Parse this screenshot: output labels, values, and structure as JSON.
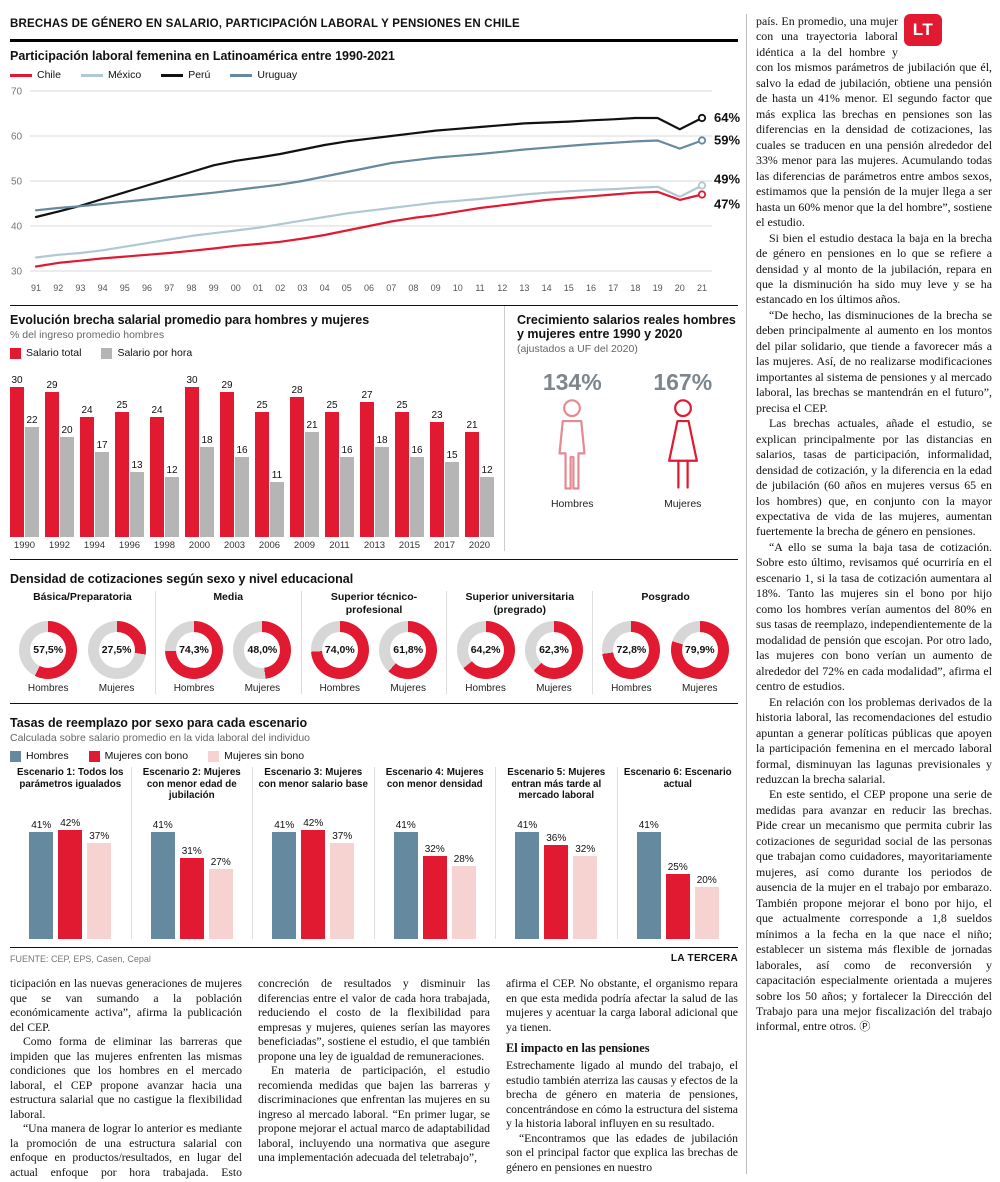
{
  "accent": {
    "red": "#e11931",
    "steel": "#65899f",
    "light_blue": "#b0c8d2",
    "black": "#111111",
    "gray_bar": "#b5b5b5",
    "pink": "#f6d3d1",
    "donut_gray": "#d7d7d7",
    "man_red": "#e58a92"
  },
  "header": {
    "title": "BRECHAS DE GÉNERO EN SALARIO, PARTICIPACIÓN LABORAL Y PENSIONES EN CHILE",
    "logo": "LT"
  },
  "footer": {
    "source": "FUENTE: CEP, EPS, Casen, Cepal",
    "brand": "LA TERCERA"
  },
  "chart_data": [
    {
      "type": "line",
      "title": "Participación laboral femenina en Latinoamérica entre 1990-2021",
      "ylim": [
        30,
        70
      ],
      "yticks": [
        30,
        40,
        50,
        60,
        70
      ],
      "x": [
        "91",
        "92",
        "93",
        "94",
        "95",
        "96",
        "97",
        "98",
        "99",
        "00",
        "01",
        "02",
        "03",
        "04",
        "05",
        "06",
        "07",
        "08",
        "09",
        "10",
        "11",
        "12",
        "13",
        "14",
        "15",
        "16",
        "17",
        "18",
        "19",
        "20",
        "21"
      ],
      "series": [
        {
          "name": "Chile",
          "color_key": "red",
          "end_label": "47%",
          "end_dy": 10,
          "values": [
            31,
            31.8,
            32.3,
            32.8,
            33.2,
            33.6,
            34,
            34.5,
            35,
            35.6,
            36,
            36.5,
            37.2,
            38,
            39,
            40,
            41,
            41.8,
            42.4,
            43.2,
            44,
            44.6,
            45.2,
            45.8,
            46.2,
            46.6,
            47,
            47.4,
            47.6,
            45.8,
            47
          ]
        },
        {
          "name": "México",
          "color_key": "light_blue",
          "end_label": "49%",
          "end_dy": -6,
          "values": [
            33,
            33.6,
            34,
            34.6,
            35.4,
            36.2,
            37,
            37.8,
            38.4,
            39,
            39.6,
            40.4,
            41.2,
            42,
            42.8,
            43.4,
            44,
            44.6,
            45.2,
            45.6,
            46,
            46.5,
            47,
            47.4,
            47.7,
            48,
            48.2,
            48.5,
            48.7,
            46.5,
            49
          ]
        },
        {
          "name": "Perú",
          "color_key": "black",
          "end_label": "64%",
          "end_dy": 0,
          "values": [
            42,
            43.2,
            44.5,
            46,
            47.5,
            49,
            50.5,
            52,
            53.5,
            54.5,
            55.2,
            56,
            57,
            58,
            58.8,
            59.4,
            60,
            60.6,
            61.2,
            61.6,
            62,
            62.4,
            62.8,
            63,
            63.2,
            63.5,
            63.7,
            64,
            64,
            61.5,
            64
          ]
        },
        {
          "name": "Uruguay",
          "color_key": "steel",
          "end_label": "59%",
          "end_dy": 0,
          "values": [
            43.5,
            44,
            44.4,
            44.9,
            45.4,
            45.9,
            46.4,
            46.9,
            47.4,
            48,
            48.6,
            49.2,
            50,
            51,
            52,
            53,
            54,
            54.6,
            55.2,
            55.6,
            56,
            56.5,
            57,
            57.4,
            57.8,
            58.2,
            58.5,
            58.8,
            59,
            57.2,
            59
          ]
        }
      ]
    },
    {
      "type": "bar",
      "title": "Evolución brecha salarial promedio para hombres y mujeres",
      "subtitle": "% del ingreso promedio hombres",
      "categories": [
        "1990",
        "1992",
        "1994",
        "1996",
        "1998",
        "2000",
        "2003",
        "2006",
        "2009",
        "2011",
        "2013",
        "2015",
        "2017",
        "2020"
      ],
      "series": [
        {
          "name": "Salario total",
          "color_key": "red",
          "values": [
            30,
            29,
            24,
            25,
            24,
            30,
            29,
            25,
            28,
            25,
            27,
            25,
            23,
            21
          ]
        },
        {
          "name": "Salario por hora",
          "color_key": "gray_bar",
          "values": [
            22,
            20,
            17,
            13,
            12,
            18,
            16,
            11,
            21,
            16,
            18,
            16,
            15,
            12
          ]
        }
      ],
      "ylim": [
        0,
        32
      ]
    },
    {
      "type": "pictogram",
      "title": "Crecimiento salarios reales hombres y mujeres entre 1990 y 2020",
      "subtitle": "(ajustados a UF del 2020)",
      "items": [
        {
          "label": "Hombres",
          "value": "134%"
        },
        {
          "label": "Mujeres",
          "value": "167%"
        }
      ]
    },
    {
      "type": "donut-grid",
      "title": "Densidad de cotizaciones según sexo y nivel educacional",
      "hombres_label": "Hombres",
      "mujeres_label": "Mujeres",
      "groups": [
        {
          "label": "Básica/Preparatoria",
          "hombres": 57.5,
          "mujeres": 27.5,
          "hombres_text": "57,5%",
          "mujeres_text": "27,5%"
        },
        {
          "label": "Media",
          "hombres": 74.3,
          "mujeres": 48.0,
          "hombres_text": "74,3%",
          "mujeres_text": "48,0%"
        },
        {
          "label": "Superior técnico-profesional",
          "hombres": 74.0,
          "mujeres": 61.8,
          "hombres_text": "74,0%",
          "mujeres_text": "61,8%"
        },
        {
          "label": "Superior universitaria (pregrado)",
          "hombres": 64.2,
          "mujeres": 62.3,
          "hombres_text": "64,2%",
          "mujeres_text": "62,3%"
        },
        {
          "label": "Posgrado",
          "hombres": 72.8,
          "mujeres": 79.9,
          "hombres_text": "72,8%",
          "mujeres_text": "79,9%"
        }
      ]
    },
    {
      "type": "bar-groups",
      "title": "Tasas de reemplazo por sexo para cada escenario",
      "subtitle": "Calculada sobre salario promedio en la vida laboral del individuo",
      "series_legend": [
        {
          "name": "Hombres",
          "color_key": "steel"
        },
        {
          "name": "Mujeres con bono",
          "color_key": "red"
        },
        {
          "name": "Mujeres sin bono",
          "color_key": "pink"
        }
      ],
      "scenarios": [
        {
          "label": "Escenario 1: Todos los parámetros igualados",
          "values": [
            41,
            42,
            37
          ]
        },
        {
          "label": "Escenario 2: Mujeres con menor edad de jubilación",
          "values": [
            41,
            31,
            27
          ]
        },
        {
          "label": "Escenario 3: Mujeres con menor salario base",
          "values": [
            41,
            42,
            37
          ]
        },
        {
          "label": "Escenario 4: Mujeres con menor densidad",
          "values": [
            41,
            32,
            28
          ]
        },
        {
          "label": "Escenario 5: Mujeres entran más tarde al mercado laboral",
          "values": [
            41,
            36,
            32
          ]
        },
        {
          "label": "Escenario 6: Escenario actual",
          "values": [
            41,
            25,
            20
          ]
        }
      ]
    }
  ],
  "bottom_columns": [
    {
      "blocks": [
        {
          "type": "p",
          "indent": false,
          "text": "ticipación en las nuevas generaciones de mujeres que se van sumando a la población económicamente activa”, afirma la publicación del CEP."
        },
        {
          "type": "p",
          "indent": true,
          "text": "Como forma de eliminar las barreras que impiden que las mujeres enfrenten las mismas condiciones que los hombres en el mercado laboral, el CEP propone avanzar hacia una estructura salarial que no castigue la flexibilidad laboral."
        },
        {
          "type": "p",
          "indent": true,
          "text": "“Una manera de lograr lo anterior es mediante la promoción de una estructura salarial con enfoque en productos/resultados, en lugar del actual enfoque por hora trabajada. Esto permitiría premiar la"
        }
      ]
    },
    {
      "blocks": [
        {
          "type": "p",
          "indent": false,
          "text": "concreción de resultados y disminuir las diferencias entre el valor de cada hora trabajada, reduciendo el costo de la flexibilidad para empresas y mujeres, quienes serían las mayores beneficiadas”, sostiene el estudio, el que también propone una ley de igualdad de remuneraciones."
        },
        {
          "type": "p",
          "indent": true,
          "text": "En materia de participación, el estudio recomienda medidas que bajen las barreras y discriminaciones que enfrentan las mujeres en su ingreso al mercado laboral. “En primer lugar, se propone mejorar el actual marco de adaptabilidad laboral, incluyendo una normativa que asegure una implementación adecuada del teletrabajo”,"
        }
      ]
    },
    {
      "blocks": [
        {
          "type": "p",
          "indent": false,
          "text": "afirma el CEP. No obstante, el organismo repara en que esta medida podría afectar la salud de las mujeres y acentuar la carga laboral adicional que ya tienen."
        },
        {
          "type": "h",
          "text": "El impacto en las pensiones"
        },
        {
          "type": "p",
          "indent": false,
          "text": "Estrechamente ligado al mundo del trabajo, el estudio también aterriza las causas y efectos de la brecha de género en materia de pensiones, concentrándose en cómo la estructura del sistema y la historia laboral influyen en su resultado."
        },
        {
          "type": "p",
          "indent": true,
          "text": "“Encontramos que las edades de jubilación son el principal factor que explica las brechas de género en pensiones en nuestro"
        }
      ]
    }
  ],
  "right_column": {
    "end_mark": "Ⓟ",
    "paragraphs": [
      "país. En promedio, una mujer con una trayectoria laboral idéntica a la del hombre y con los mismos parámetros de jubilación que él, salvo la edad de jubilación, obtiene una pensión de hasta un 41% menor. El segundo factor que más explica las brechas en pensiones son las diferencias en la densidad de cotizaciones, las cuales se traducen en una pensión alrededor del 33% menor para las mujeres. Acumulando todas las diferencias de parámetros entre ambos sexos, estimamos que la pensión de la mujer llega a ser hasta un 60% menor que la del hombre”, sostiene el estudio.",
      "Si bien el estudio destaca la baja en la brecha de género en pensiones en lo que se refiere a densidad y al monto de la jubilación, repara en que la disminución ha sido muy leve y se ha estancado en los últimos años.",
      "“De hecho, las disminuciones de la brecha se deben principalmente al aumento en los montos del pilar solidario, que tiende a favorecer más a las mujeres. Así, de no realizarse modificaciones importantes al sistema de pensiones y al mercado laboral, las brechas se mantendrán en el futuro”, precisa el CEP.",
      "Las brechas actuales, añade el estudio, se explican principalmente por las distancias en salarios, tasas de participación, informalidad, densidad de cotización, y la diferencia en la edad de jubilación (60 años en mujeres versus 65 en los hombres) que, en conjunto con la mayor expectativa de vida de las mujeres, aumentan fuertemente la brecha de género en pensiones.",
      "“A ello se suma la baja tasa de cotización. Sobre esto último, revisamos qué ocurriría en el escenario 1, si la tasa de cotización aumentara al 18%. Tanto las mujeres sin el bono por hijo como los hombres verían aumentos del 80% en sus tasas de reemplazo, independientemente de la modalidad de pensión que escojan. Por otro lado, las mujeres con bono verían un aumento de alrededor del 72% en cada modalidad”, afirma el centro de estudios.",
      "En relación con los problemas derivados de la historia laboral, las recomendaciones del estudio apuntan a generar políticas públicas que apoyen la participación femenina en el mercado laboral formal, disminuyan las lagunas previsionales y reduzcan la brecha salarial.",
      "En este sentido, el CEP propone una serie de medidas para avanzar en reducir las brechas. Pide crear un mecanismo que permita cubrir las cotizaciones de seguridad social de las personas que trabajan como cuidadores, mayoritariamente mujeres, así como durante los periodos de ausencia de la mujer en el trabajo por embarazo. También propone mejorar el bono por hijo, el que actualmente corresponde a 1,8 sueldos mínimos a la fecha en la que nace el niño; establecer un sistema más flexible de jornadas laborales, así como de reconversión y capacitación especialmente orientada a mujeres sobre los 50 años; y fortalecer la Dirección del Trabajo para una mejor fiscalización del trabajo informal, entre otros."
    ]
  }
}
